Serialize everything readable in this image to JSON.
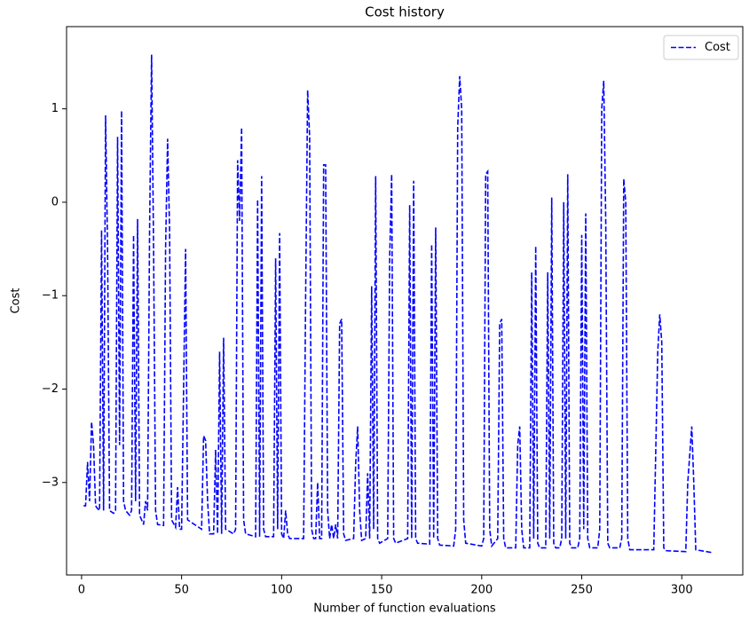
{
  "chart_data": {
    "type": "line",
    "title": "Cost history",
    "x_label": "Number of function evaluations",
    "y_label": "Cost",
    "x": [
      1,
      2,
      3,
      4,
      5,
      6,
      7,
      8,
      9,
      10,
      11,
      12,
      13,
      14,
      16,
      17,
      18,
      19,
      20,
      21,
      22,
      24,
      25,
      26,
      27,
      28,
      29,
      31,
      32,
      33,
      34,
      35,
      36,
      37,
      38,
      41,
      42,
      43,
      44,
      45,
      47,
      48,
      49,
      50,
      51,
      52,
      53,
      60,
      61,
      62,
      63,
      64,
      66,
      67,
      68,
      69,
      70,
      71,
      72,
      76,
      77,
      78,
      79,
      80,
      81,
      82,
      87,
      88,
      89,
      90,
      91,
      92,
      96,
      97,
      98,
      99,
      100,
      101,
      102,
      103,
      104,
      111,
      112,
      113,
      114,
      115,
      116,
      117,
      118,
      119,
      120,
      121,
      122,
      123,
      124,
      125,
      126,
      127,
      128,
      129,
      130,
      131,
      132,
      136,
      137,
      138,
      139,
      140,
      142,
      143,
      144,
      145,
      146,
      147,
      148,
      149,
      153,
      154,
      155,
      156,
      157,
      163,
      164,
      165,
      166,
      167,
      168,
      174,
      175,
      176,
      177,
      178,
      179,
      186,
      187,
      188,
      189,
      190,
      191,
      192,
      200,
      201,
      202,
      203,
      204,
      205,
      208,
      209,
      210,
      211,
      212,
      217,
      218,
      219,
      220,
      221,
      224,
      225,
      226,
      227,
      228,
      229,
      232,
      233,
      234,
      235,
      236,
      237,
      239,
      240,
      241,
      242,
      243,
      244,
      245,
      248,
      249,
      250,
      251,
      252,
      253,
      254,
      258,
      259,
      260,
      261,
      262,
      263,
      264,
      269,
      270,
      271,
      272,
      273,
      274,
      286,
      288,
      289,
      290,
      291,
      292,
      302,
      303,
      305,
      306,
      307,
      315
    ],
    "series": [
      {
        "name": "Cost",
        "color": "#0000ff",
        "dash": true,
        "values": [
          -3.25,
          -3.25,
          -2.78,
          -3.2,
          -2.35,
          -2.6,
          -3.25,
          -3.28,
          -3.3,
          -0.3,
          -3.3,
          0.93,
          -0.5,
          -3.3,
          -3.33,
          -3.3,
          0.7,
          -2.6,
          0.98,
          -3.2,
          -3.3,
          -3.35,
          -3.3,
          -0.35,
          -3.2,
          -0.18,
          -3.35,
          -3.45,
          -3.2,
          -3.3,
          -0.3,
          1.58,
          -0.5,
          -3.3,
          -3.45,
          -3.46,
          -0.5,
          0.68,
          -0.3,
          -3.4,
          -3.48,
          -3.05,
          -3.5,
          -3.5,
          -2.0,
          -0.5,
          -3.4,
          -3.5,
          -2.5,
          -2.55,
          -3.2,
          -3.55,
          -3.55,
          -2.65,
          -3.55,
          -1.6,
          -3.55,
          -1.45,
          -3.5,
          -3.55,
          -3.5,
          0.45,
          -0.2,
          0.8,
          -3.4,
          -3.55,
          -3.58,
          0.03,
          -3.58,
          0.28,
          -3.5,
          -3.58,
          -3.58,
          -0.6,
          -3.5,
          -0.33,
          -3.55,
          -3.6,
          -3.3,
          -3.55,
          -3.6,
          -3.6,
          -1.0,
          1.2,
          0.7,
          -3.5,
          -3.6,
          -3.6,
          -3.0,
          -3.6,
          -3.6,
          0.4,
          0.4,
          -3.3,
          -3.6,
          -3.45,
          -3.6,
          -3.45,
          -3.6,
          -1.3,
          -1.25,
          -3.55,
          -3.62,
          -3.6,
          -2.8,
          -2.4,
          -3.3,
          -3.62,
          -3.6,
          -2.9,
          -3.6,
          -0.9,
          -3.5,
          0.28,
          -3.6,
          -3.65,
          -3.6,
          -0.6,
          0.3,
          -3.6,
          -3.65,
          -3.6,
          -0.03,
          -3.6,
          0.23,
          -3.6,
          -3.65,
          -3.66,
          -0.45,
          -3.6,
          -0.27,
          -3.6,
          -3.67,
          -3.68,
          -3.5,
          0.8,
          1.35,
          1.0,
          -3.4,
          -3.65,
          -3.68,
          -3.6,
          0.3,
          0.33,
          -3.5,
          -3.68,
          -3.6,
          -1.3,
          -1.25,
          -3.6,
          -3.7,
          -3.7,
          -2.6,
          -2.4,
          -3.5,
          -3.7,
          -3.7,
          -0.75,
          -3.6,
          -0.47,
          -3.65,
          -3.7,
          -3.7,
          -0.75,
          -3.6,
          0.05,
          -3.65,
          -3.7,
          -3.7,
          -3.6,
          0.0,
          -3.6,
          0.3,
          -3.65,
          -3.7,
          -3.7,
          -3.6,
          -0.35,
          -3.5,
          -0.12,
          -3.6,
          -3.7,
          -3.7,
          -3.5,
          1.0,
          1.3,
          -0.2,
          -3.65,
          -3.7,
          -3.7,
          -3.6,
          0.25,
          0.0,
          -3.6,
          -3.72,
          -3.72,
          -1.6,
          -1.2,
          -1.5,
          -3.7,
          -3.73,
          -3.74,
          -3.0,
          -2.4,
          -3.0,
          -3.72,
          -3.75
        ]
      }
    ],
    "xlim": [
      -7.5,
      330.5
    ],
    "xticks": [
      0,
      50,
      100,
      150,
      200,
      250,
      300
    ],
    "ylim": [
      -3.99,
      1.88
    ],
    "yticks": [
      {
        "value": -3,
        "label": "−3"
      },
      {
        "value": -2,
        "label": "−2"
      },
      {
        "value": -1,
        "label": "−1"
      },
      0,
      1
    ],
    "legend": "upper right",
    "grid": false
  }
}
